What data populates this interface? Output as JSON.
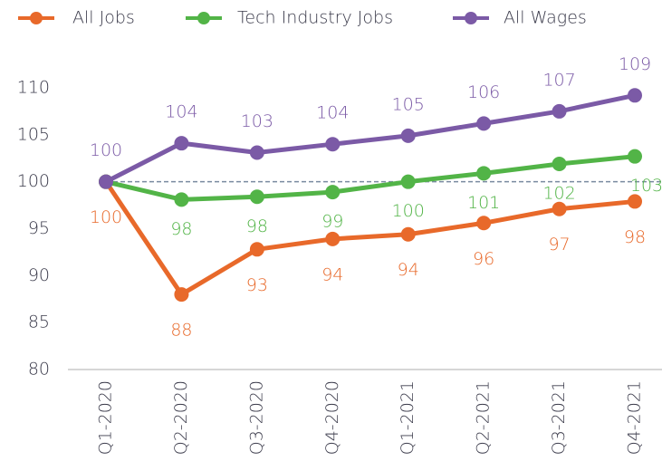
{
  "chart_data": {
    "type": "line",
    "categories": [
      "Q1-2020",
      "Q2-2020",
      "Q3-2020",
      "Q4-2020",
      "Q1-2021",
      "Q2-2021",
      "Q3-2021",
      "Q4-2021"
    ],
    "series": [
      {
        "name": "All Jobs",
        "color": "#e8692a",
        "values": [
          100,
          88,
          92.8,
          93.9,
          94.4,
          95.6,
          97.1,
          97.9
        ],
        "value_labels": [
          "100",
          "88",
          "93",
          "94",
          "94",
          "96",
          "97",
          "98"
        ]
      },
      {
        "name": "Tech Industry Jobs",
        "color": "#52b447",
        "values": [
          100,
          98.1,
          98.4,
          98.9,
          100,
          100.9,
          101.9,
          102.7
        ],
        "value_labels": [
          null,
          "98",
          "98",
          "99",
          "100",
          "101",
          "102",
          "103"
        ]
      },
      {
        "name": "All Wages",
        "color": "#7b5aa6",
        "values": [
          100,
          104.1,
          103.1,
          104,
          104.9,
          106.2,
          107.5,
          109.2
        ],
        "value_labels": [
          "100",
          "104",
          "103",
          "104",
          "105",
          "106",
          "107",
          "109"
        ]
      }
    ],
    "reference_line": 100,
    "ylim": [
      80,
      110
    ],
    "yticks": [
      80,
      85,
      90,
      95,
      100,
      105,
      110
    ],
    "legend": "top"
  }
}
